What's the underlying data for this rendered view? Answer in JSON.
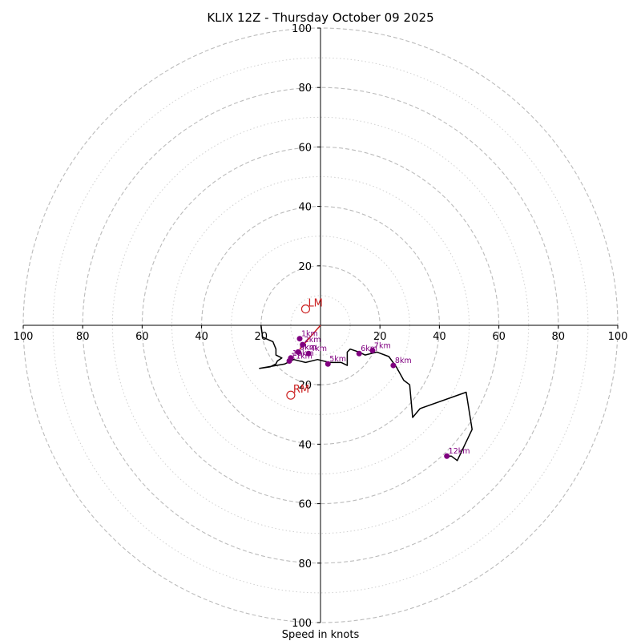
{
  "chart_data": {
    "type": "hodograph",
    "title": "KLIX 12Z - Thursday October 09 2025",
    "xlabel": "Speed in knots",
    "axis_range": [
      -100,
      100
    ],
    "ring_major": [
      20,
      40,
      60,
      80,
      100
    ],
    "ring_minor": [
      10,
      30,
      50,
      70,
      90
    ],
    "tick_labels": {
      "left": [
        "100",
        "80",
        "60",
        "40",
        "20"
      ],
      "right": [
        "20",
        "40",
        "60",
        "80",
        "100"
      ],
      "top": [
        "100",
        "80",
        "60",
        "40",
        "20"
      ],
      "bottom": [
        "20",
        "40",
        "60",
        "80",
        "100"
      ]
    },
    "tick_values": [
      -100,
      -80,
      -60,
      -40,
      -20,
      20,
      40,
      60,
      80,
      100
    ],
    "trace": [
      [
        -20,
        0
      ],
      [
        -19.5,
        -4
      ],
      [
        -16,
        -5.5
      ],
      [
        -15,
        -8
      ],
      [
        -15,
        -10
      ],
      [
        -13,
        -11
      ],
      [
        -14.5,
        -12
      ],
      [
        -15,
        -13
      ],
      [
        -17,
        -14
      ],
      [
        -20.5,
        -14.5
      ],
      [
        -12,
        -13
      ],
      [
        -9,
        -11.5
      ],
      [
        -5,
        -12.5
      ],
      [
        -1,
        -11.5
      ],
      [
        3,
        -12.5
      ],
      [
        7,
        -12.5
      ],
      [
        9,
        -13.5
      ],
      [
        9,
        -9
      ],
      [
        10,
        -8
      ],
      [
        13,
        -9
      ],
      [
        15,
        -10
      ],
      [
        19,
        -9
      ],
      [
        23,
        -10.5
      ],
      [
        25.5,
        -14
      ],
      [
        28,
        -18.5
      ],
      [
        30,
        -20
      ],
      [
        31,
        -31
      ],
      [
        33.5,
        -28
      ],
      [
        49,
        -22.5
      ],
      [
        51,
        -35
      ],
      [
        46,
        -45.5
      ],
      [
        44,
        -44
      ],
      [
        42.5,
        -44
      ]
    ],
    "height_markers": [
      {
        "label": "1km",
        "u": -7,
        "v": -4.5
      },
      {
        "label": "2km",
        "u": -6,
        "v": -6.5
      },
      {
        "label": "3km",
        "u": -7.5,
        "v": -9
      },
      {
        "label": "4km",
        "u": -4,
        "v": -9.5
      },
      {
        "label": "5km",
        "u": 2.5,
        "v": -13
      },
      {
        "label": "6km",
        "u": 13,
        "v": -9.5
      },
      {
        "label": "7km",
        "u": 17.5,
        "v": -8.5
      },
      {
        "label": "8km",
        "u": 24.5,
        "v": -13.5
      },
      {
        "label": "9km",
        "u": -7.5,
        "v": -9
      },
      {
        "label": "10km",
        "u": -10,
        "v": -11
      },
      {
        "label": "11km",
        "u": -10.5,
        "v": -12
      },
      {
        "label": "12km",
        "u": 42.5,
        "v": -44
      }
    ],
    "storm_motion": [
      {
        "label": "LM",
        "u": -5,
        "v": 5.5
      },
      {
        "label": "RM",
        "u": -10,
        "v": -23.5
      }
    ],
    "mean_wind_vector": {
      "from": [
        0,
        0
      ],
      "to": [
        -7,
        -8
      ]
    },
    "colors": {
      "trace": "#000000",
      "markers": "#800080",
      "motion": "#cc2222",
      "grid": "#bbbbbb"
    }
  }
}
